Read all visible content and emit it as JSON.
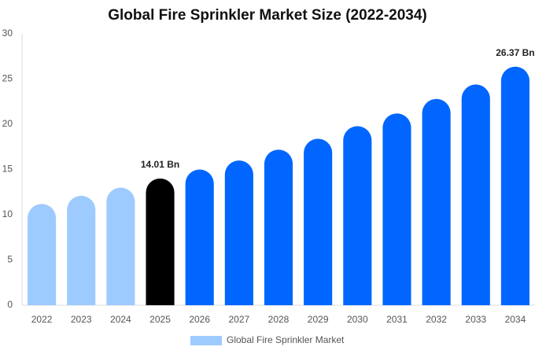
{
  "chart_data": {
    "type": "bar",
    "title": "Global Fire Sprinkler Market Size (2022-2034)",
    "categories": [
      "2022",
      "2023",
      "2024",
      "2025",
      "2026",
      "2027",
      "2028",
      "2029",
      "2030",
      "2031",
      "2032",
      "2033",
      "2034"
    ],
    "series": [
      {
        "name": "Global Fire Sprinkler Market",
        "color": "#9ecbff",
        "colors": [
          "#9ecbff",
          "#9ecbff",
          "#9ecbff",
          "#000000",
          "#0066ff",
          "#0066ff",
          "#0066ff",
          "#0066ff",
          "#0066ff",
          "#0066ff",
          "#0066ff",
          "#0066ff",
          "#0066ff"
        ],
        "values": [
          11.2,
          12.1,
          13.0,
          14.01,
          15.0,
          16.0,
          17.2,
          18.4,
          19.8,
          21.2,
          22.8,
          24.4,
          26.37
        ],
        "value_labels": [
          null,
          null,
          null,
          "14.01 Bn",
          null,
          null,
          null,
          null,
          null,
          null,
          null,
          null,
          "26.37 Bn"
        ]
      }
    ],
    "ylim": [
      0,
      30
    ],
    "yticks": [
      0,
      5,
      10,
      15,
      20,
      25,
      30
    ],
    "grid": false,
    "legend": "bottom"
  }
}
